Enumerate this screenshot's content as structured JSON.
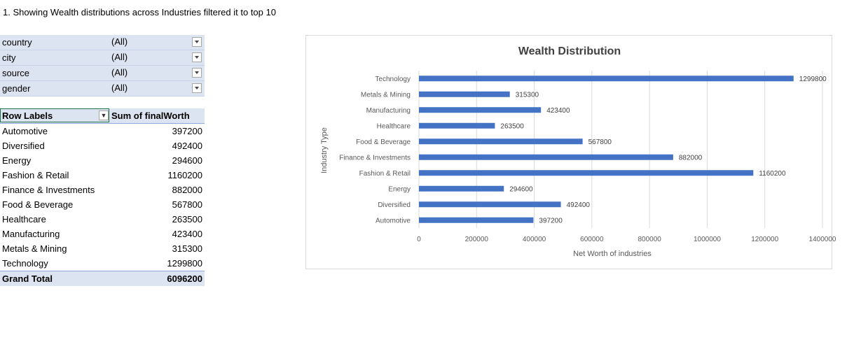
{
  "heading": "1. Showing Wealth distributions across Industries filtered it to top 10",
  "filters": [
    {
      "label": "country",
      "value": "(All)"
    },
    {
      "label": "city",
      "value": "(All)"
    },
    {
      "label": "source",
      "value": "(All)"
    },
    {
      "label": "gender",
      "value": "(All)"
    }
  ],
  "pivot": {
    "row_labels_header": "Row Labels",
    "value_header": "Sum of finalWorth",
    "rows": [
      {
        "label": "Automotive",
        "value": "397200"
      },
      {
        "label": "Diversified",
        "value": "492400"
      },
      {
        "label": "Energy",
        "value": "294600"
      },
      {
        "label": "Fashion & Retail",
        "value": "1160200"
      },
      {
        "label": "Finance & Investments",
        "value": "882000"
      },
      {
        "label": "Food & Beverage",
        "value": "567800"
      },
      {
        "label": "Healthcare",
        "value": "263500"
      },
      {
        "label": "Manufacturing",
        "value": "423400"
      },
      {
        "label": "Metals & Mining",
        "value": "315300"
      },
      {
        "label": "Technology",
        "value": "1299800"
      }
    ],
    "total_label": "Grand Total",
    "total_value": "6096200"
  },
  "colors": {
    "bar": "#4472c4",
    "filter_bg": "#dce3f1",
    "grid": "#d9d9d9"
  },
  "chart_data": {
    "type": "bar",
    "orientation": "horizontal",
    "title": "Wealth Distribution",
    "xlabel": "Net Worth of industries",
    "ylabel": "Industry Type",
    "categories": [
      "Technology",
      "Metals & Mining",
      "Manufacturing",
      "Healthcare",
      "Food & Beverage",
      "Finance & Investments",
      "Fashion & Retail",
      "Energy",
      "Diversified",
      "Automotive"
    ],
    "values": [
      1299800,
      315300,
      423400,
      263500,
      567800,
      882000,
      1160200,
      294600,
      492400,
      397200
    ],
    "xlim": [
      0,
      1400000
    ],
    "xticks": [
      0,
      200000,
      400000,
      600000,
      800000,
      1000000,
      1200000,
      1400000
    ],
    "grid": true,
    "data_labels": true
  }
}
